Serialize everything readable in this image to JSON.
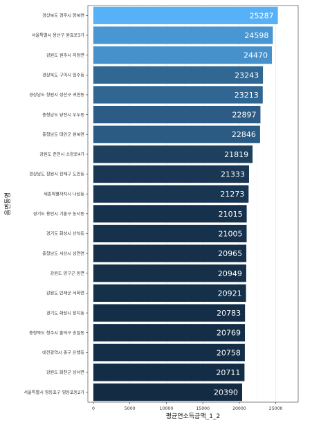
{
  "chart_data": {
    "type": "bar",
    "orientation": "horizontal",
    "xlabel": "평균연소득금액_1_2",
    "ylabel": "읍면동명",
    "xlim": [
      0,
      27500
    ],
    "x_ticks": [
      0,
      5000,
      10000,
      15000,
      20000,
      25000
    ],
    "x_tick_labels": [
      "0",
      "5000",
      "10000",
      "15000",
      "20000",
      "25000"
    ],
    "grid": true,
    "colors": {
      "low": "#132B43",
      "high": "#56B1F7"
    },
    "categories": [
      "경상북도 경주시 양북면",
      "서울특별시 용산구 원효로3가",
      "강원도 원주시 지정면",
      "경상북도 구미시 임수동",
      "경상남도 창원시 성산구 귀현동",
      "충청남도 당진시 우두동",
      "충청남도 태안군 원북면",
      "강원도 춘천시 소양로4가",
      "경상남도 창원시 진해구 도만동",
      "세종특별자치시 나성동",
      "경기도 용인시 기흥구 농서동",
      "경기도 화성시 산척동",
      "충청남도 서산시 성연면",
      "강원도 양구군 동면",
      "강원도 인제군 서화면",
      "경기도 화성시 장지동",
      "충청북도 청주시 흥덕구 송절동",
      "대전광역시 중구 은행동",
      "강원도 화천군 상서면",
      "서울특별시 영등포구 영등포동2가"
    ],
    "values": [
      25287,
      24598,
      24470,
      23243,
      23213,
      22897,
      22846,
      21819,
      21333,
      21273,
      21015,
      21005,
      20965,
      20949,
      20921,
      20783,
      20769,
      20758,
      20711,
      20390
    ]
  }
}
